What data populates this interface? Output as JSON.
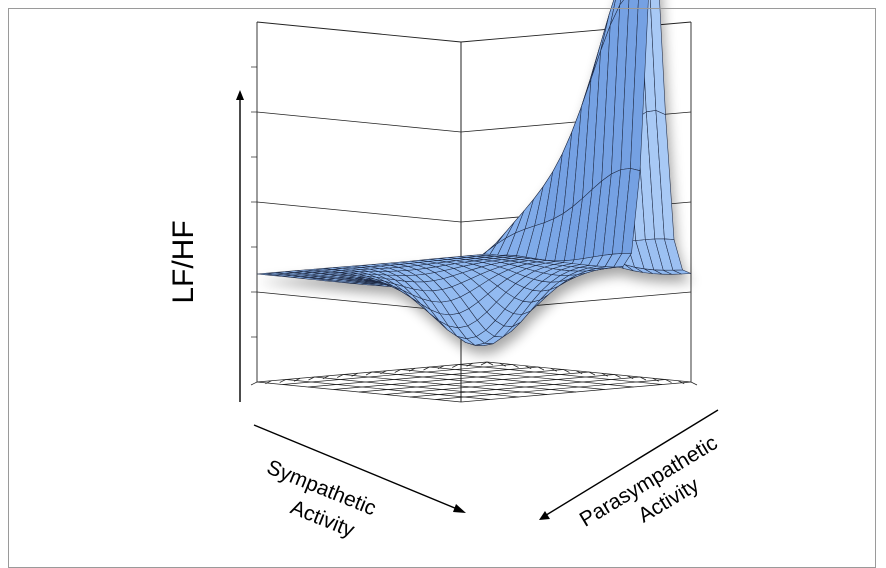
{
  "chart_data": {
    "type": "surface",
    "title": "",
    "zlabel": "LF/HF",
    "xlabel_lines": [
      "Sympathetic",
      "Activity"
    ],
    "ylabel_lines": [
      "Parasympathetic",
      "Activity"
    ],
    "grid": true,
    "tick_labels": false,
    "grid_resolution": 24,
    "surface_shape": {
      "description_free": true,
      "baseline_height": 0.3,
      "trough_depth": 0.22,
      "ridge_height": 0.95,
      "peak_position": [
        0.18,
        0.95
      ]
    },
    "colors": {
      "surface_fill": "#8fb8f0",
      "surface_light": "#b3d0f7",
      "surface_dark": "#6d9be0",
      "mesh_line": "#1f2a44",
      "grid_line": "#222222",
      "axis_line": "#000000"
    }
  }
}
